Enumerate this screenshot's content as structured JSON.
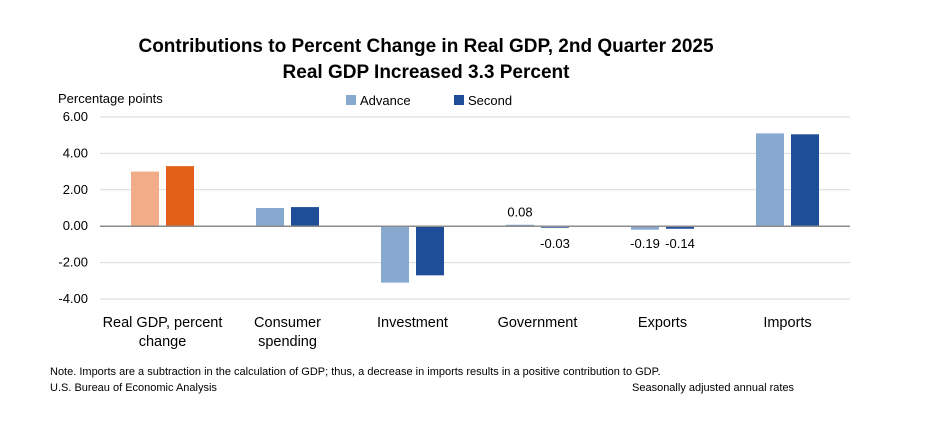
{
  "chart_data": {
    "type": "bar",
    "title": "Contributions to Percent Change in Real GDP, 2nd Quarter 2025",
    "subtitle": "Real GDP Increased 3.3 Percent",
    "ylabel": "Percentage points",
    "xlabel": "",
    "ylim": [
      -4,
      6
    ],
    "yticks": [
      "6.00",
      "4.00",
      "2.00",
      "0.00",
      "-2.00",
      "-4.00"
    ],
    "grid": true,
    "legend_position": "top-center",
    "categories": [
      [
        "Real GDP, percent",
        "change"
      ],
      [
        "Consumer",
        "spending"
      ],
      [
        "Investment"
      ],
      [
        "Government"
      ],
      [
        "Exports"
      ],
      [
        "Imports"
      ]
    ],
    "series": [
      {
        "name": "Advance",
        "color": "#87a9d0",
        "first_category_color": "#f0ad88",
        "values": [
          3.0,
          1.0,
          -3.1,
          0.08,
          -0.19,
          5.1
        ],
        "data_labels": [
          "",
          "",
          "",
          "0.08",
          "-0.19",
          ""
        ]
      },
      {
        "name": "Second",
        "color": "#1f4e98",
        "first_category_color": "#e06017",
        "values": [
          3.3,
          1.05,
          -2.7,
          -0.03,
          -0.14,
          5.05
        ],
        "data_labels": [
          "",
          "",
          "",
          "-0.03",
          "-0.14",
          ""
        ]
      }
    ]
  },
  "footer": {
    "note": "Note. Imports are a subtraction in the calculation of GDP; thus, a decrease in imports results in a positive contribution to GDP.",
    "source": "U.S. Bureau of Economic Analysis",
    "rates": "Seasonally adjusted annual rates"
  }
}
